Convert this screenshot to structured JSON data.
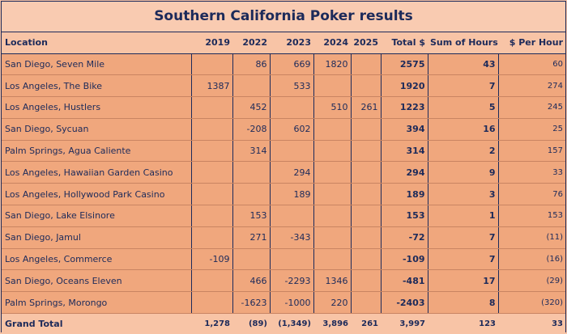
{
  "title": "Southern California Poker results",
  "headers": [
    "Location",
    "2019",
    "2022",
    "2023",
    "2024",
    "2025",
    "Total $",
    "Sum of Hours",
    "$ Per Hour"
  ],
  "rows": [
    {
      "location": "San Diego, Seven Mile",
      "y2019": "",
      "y2022": "86",
      "y2023": "669",
      "y2024": "1820",
      "y2025": "",
      "total": "2575",
      "hours": "43",
      "per_hour": "60"
    },
    {
      "location": "Los Angeles, The Bike",
      "y2019": "1387",
      "y2022": "",
      "y2023": "533",
      "y2024": "",
      "y2025": "",
      "total": "1920",
      "hours": "7",
      "per_hour": "274"
    },
    {
      "location": "Los Angeles, Hustlers",
      "y2019": "",
      "y2022": "452",
      "y2023": "",
      "y2024": "510",
      "y2025": "261",
      "total": "1223",
      "hours": "5",
      "per_hour": "245"
    },
    {
      "location": "San Diego, Sycuan",
      "y2019": "",
      "y2022": "-208",
      "y2023": "602",
      "y2024": "",
      "y2025": "",
      "total": "394",
      "hours": "16",
      "per_hour": "25"
    },
    {
      "location": "Palm Springs, Agua Caliente",
      "y2019": "",
      "y2022": "314",
      "y2023": "",
      "y2024": "",
      "y2025": "",
      "total": "314",
      "hours": "2",
      "per_hour": "157"
    },
    {
      "location": "Los Angeles, Hawaiian Garden Casino",
      "y2019": "",
      "y2022": "",
      "y2023": "294",
      "y2024": "",
      "y2025": "",
      "total": "294",
      "hours": "9",
      "per_hour": "33"
    },
    {
      "location": "Los Angeles, Hollywood Park Casino",
      "y2019": "",
      "y2022": "",
      "y2023": "189",
      "y2024": "",
      "y2025": "",
      "total": "189",
      "hours": "3",
      "per_hour": "76"
    },
    {
      "location": "San Diego, Lake Elsinore",
      "y2019": "",
      "y2022": "153",
      "y2023": "",
      "y2024": "",
      "y2025": "",
      "total": "153",
      "hours": "1",
      "per_hour": "153"
    },
    {
      "location": "San Diego, Jamul",
      "y2019": "",
      "y2022": "271",
      "y2023": "-343",
      "y2024": "",
      "y2025": "",
      "total": "-72",
      "hours": "7",
      "per_hour": "(11)"
    },
    {
      "location": "Los Angeles, Commerce",
      "y2019": "-109",
      "y2022": "",
      "y2023": "",
      "y2024": "",
      "y2025": "",
      "total": "-109",
      "hours": "7",
      "per_hour": "(16)"
    },
    {
      "location": "San Diego, Oceans Eleven",
      "y2019": "",
      "y2022": "466",
      "y2023": "-2293",
      "y2024": "1346",
      "y2025": "",
      "total": "-481",
      "hours": "17",
      "per_hour": "(29)"
    },
    {
      "location": "Palm Springs, Morongo",
      "y2019": "",
      "y2022": "-1623",
      "y2023": "-1000",
      "y2024": "220",
      "y2025": "",
      "total": "-2403",
      "hours": "8",
      "per_hour": "(320)"
    }
  ],
  "grand_total": {
    "location": "Grand Total",
    "y2019": "1,278",
    "y2022": "(89)",
    "y2023": "(1,349)",
    "y2024": "3,896",
    "y2025": "261",
    "total": "3,997",
    "hours": "123",
    "per_hour": "33"
  }
}
